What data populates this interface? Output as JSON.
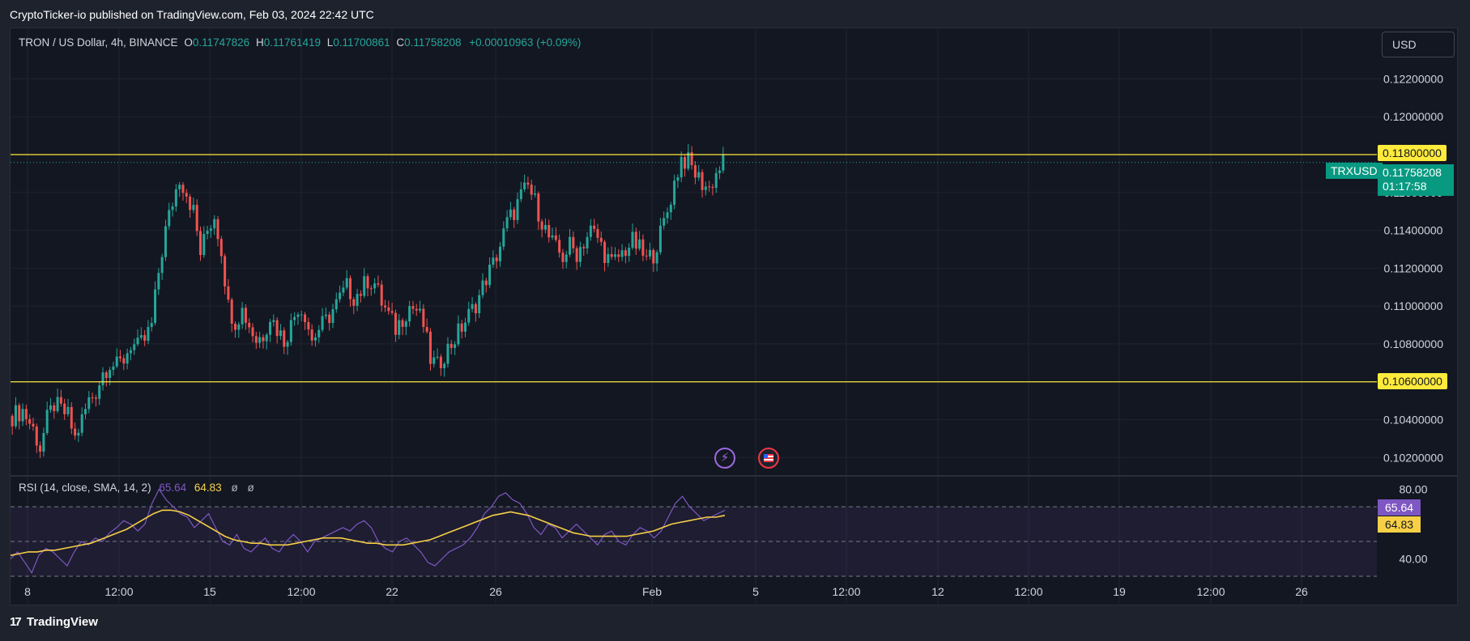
{
  "header": {
    "publish_line": "CryptoTicker-io published on TradingView.com, Feb 03, 2024 22:42 UTC"
  },
  "legend": {
    "symbol_line": "TRON / US Dollar, 4h, BINANCE",
    "o_label": "O",
    "o_value": "0.11747826",
    "h_label": "H",
    "h_value": "0.11761419",
    "l_label": "L",
    "l_value": "0.11700861",
    "c_label": "C",
    "c_value": "0.11758208",
    "change": "+0.00010963 (+0.09%)"
  },
  "currency_button": "USD",
  "price_labels": {
    "resistance": "0.11800000",
    "support": "0.10600000",
    "symbol_tag": "TRXUSD",
    "last_price": "0.11758208",
    "countdown": "01:17:58"
  },
  "rsi_legend": {
    "title": "RSI (14, close, SMA, 14, 2)",
    "rsi_value": "65.64",
    "sma_value": "64.83",
    "null1": "ø",
    "null2": "ø"
  },
  "footer": {
    "brand": "TradingView",
    "logo_glyph": "17"
  },
  "colors": {
    "background": "#131722",
    "up": "#26a69a",
    "down": "#ef5350",
    "level_line": "#ffeb3b",
    "rsi_line": "#7e57c2",
    "rsi_sma": "#f7d046",
    "grid": "#1f2430"
  },
  "icons": [
    "lightning-event-icon",
    "us-flag-event-icon"
  ],
  "chart_data": [
    {
      "type": "candlestick",
      "symbol": "TRXUSD",
      "interval": "4h",
      "exchange": "BINANCE",
      "y_ticks": [
        "0.12200000",
        "0.12000000",
        "0.11800000",
        "0.11600000",
        "0.11400000",
        "0.11200000",
        "0.11000000",
        "0.10800000",
        "0.10600000",
        "0.10400000",
        "0.10200000"
      ],
      "ylim": [
        0.1012,
        0.1236
      ],
      "x_ticks": [
        "8",
        "12:00",
        "15",
        "12:00",
        "22",
        "26",
        "Feb",
        "5",
        "12:00",
        "12",
        "12:00",
        "19",
        "12:00",
        "26"
      ],
      "grid": true,
      "horizontal_lines": [
        0.118,
        0.106
      ],
      "last_price": 0.11758208,
      "close_path": [
        [
          0,
          0.1042
        ],
        [
          3,
          0.1045
        ],
        [
          6,
          0.1035
        ],
        [
          8,
          0.1025
        ],
        [
          10,
          0.104
        ],
        [
          12,
          0.1048
        ],
        [
          14,
          0.1045
        ],
        [
          16,
          0.1042
        ],
        [
          18,
          0.103
        ],
        [
          20,
          0.104
        ],
        [
          22,
          0.105
        ],
        [
          24,
          0.1055
        ],
        [
          26,
          0.1065
        ],
        [
          28,
          0.107
        ],
        [
          30,
          0.1068
        ],
        [
          32,
          0.1072
        ],
        [
          34,
          0.108
        ],
        [
          36,
          0.1078
        ],
        [
          38,
          0.1082
        ],
        [
          40,
          0.109
        ],
        [
          42,
          0.1118
        ],
        [
          44,
          0.114
        ],
        [
          46,
          0.1155
        ],
        [
          48,
          0.1168
        ],
        [
          50,
          0.116
        ],
        [
          52,
          0.115
        ],
        [
          54,
          0.1128
        ],
        [
          56,
          0.114
        ],
        [
          58,
          0.1148
        ],
        [
          60,
          0.113
        ],
        [
          62,
          0.11
        ],
        [
          64,
          0.1092
        ],
        [
          66,
          0.1098
        ],
        [
          68,
          0.109
        ],
        [
          70,
          0.1082
        ],
        [
          72,
          0.1085
        ],
        [
          74,
          0.1095
        ],
        [
          76,
          0.1088
        ],
        [
          78,
          0.1082
        ],
        [
          80,
          0.109
        ],
        [
          82,
          0.11
        ],
        [
          84,
          0.1096
        ],
        [
          86,
          0.1082
        ],
        [
          88,
          0.1088
        ],
        [
          90,
          0.1092
        ],
        [
          92,
          0.1098
        ],
        [
          94,
          0.1104
        ],
        [
          96,
          0.111
        ],
        [
          98,
          0.1105
        ],
        [
          100,
          0.1108
        ],
        [
          102,
          0.1114
        ],
        [
          104,
          0.1112
        ],
        [
          106,
          0.1102
        ],
        [
          108,
          0.1095
        ],
        [
          110,
          0.1088
        ],
        [
          112,
          0.1094
        ],
        [
          114,
          0.11
        ],
        [
          116,
          0.1098
        ],
        [
          118,
          0.109
        ],
        [
          120,
          0.1072
        ],
        [
          122,
          0.1068
        ],
        [
          124,
          0.1075
        ],
        [
          126,
          0.108
        ],
        [
          128,
          0.1086
        ],
        [
          130,
          0.1092
        ],
        [
          132,
          0.1098
        ],
        [
          134,
          0.1105
        ],
        [
          136,
          0.1115
        ],
        [
          138,
          0.1122
        ],
        [
          140,
          0.1132
        ],
        [
          142,
          0.1144
        ],
        [
          144,
          0.115
        ],
        [
          146,
          0.1158
        ],
        [
          148,
          0.1163
        ],
        [
          150,
          0.1155
        ],
        [
          152,
          0.1145
        ],
        [
          154,
          0.1136
        ],
        [
          156,
          0.113
        ],
        [
          158,
          0.1126
        ],
        [
          160,
          0.1132
        ],
        [
          162,
          0.1128
        ],
        [
          164,
          0.1134
        ],
        [
          166,
          0.114
        ],
        [
          168,
          0.1136
        ],
        [
          170,
          0.1128
        ],
        [
          172,
          0.1122
        ],
        [
          174,
          0.1126
        ],
        [
          176,
          0.113
        ],
        [
          178,
          0.1134
        ],
        [
          180,
          0.113
        ],
        [
          182,
          0.1124
        ],
        [
          184,
          0.1128
        ],
        [
          186,
          0.1138
        ],
        [
          188,
          0.115
        ],
        [
          190,
          0.1165
        ],
        [
          192,
          0.1178
        ],
        [
          194,
          0.1176
        ],
        [
          196,
          0.117
        ],
        [
          198,
          0.1165
        ],
        [
          200,
          0.1162
        ],
        [
          202,
          0.117
        ],
        [
          204,
          0.1176
        ]
      ],
      "visible_bars": 205,
      "bar_axis": {
        "first": 0,
        "last": 204
      }
    },
    {
      "type": "line",
      "title": "RSI (14, close, SMA, 14, 2)",
      "y_ticks": [
        "80.00",
        "40.00"
      ],
      "ylim": [
        30,
        84
      ],
      "bands": [
        70,
        50,
        30
      ],
      "series": [
        {
          "name": "RSI",
          "color": "#7e57c2",
          "values": [
            40,
            44,
            38,
            32,
            42,
            46,
            44,
            40,
            36,
            44,
            50,
            48,
            52,
            50,
            55,
            58,
            62,
            60,
            56,
            60,
            72,
            80,
            74,
            70,
            66,
            64,
            58,
            62,
            66,
            58,
            50,
            48,
            54,
            46,
            44,
            48,
            52,
            46,
            44,
            50,
            54,
            50,
            44,
            50,
            52,
            54,
            56,
            58,
            56,
            60,
            62,
            58,
            50,
            46,
            44,
            50,
            52,
            48,
            44,
            38,
            36,
            40,
            44,
            46,
            48,
            52,
            58,
            66,
            70,
            76,
            78,
            74,
            72,
            66,
            58,
            54,
            60,
            58,
            52,
            56,
            60,
            56,
            52,
            48,
            54,
            56,
            50,
            48,
            54,
            58,
            56,
            52,
            56,
            64,
            72,
            76,
            70,
            66,
            62,
            64,
            66,
            68
          ]
        },
        {
          "name": "SMA",
          "color": "#f7d046",
          "values": [
            42,
            43,
            44,
            44,
            45,
            45,
            46,
            47,
            48,
            49,
            51,
            53,
            55,
            57,
            60,
            63,
            66,
            68,
            68,
            67,
            65,
            62,
            59,
            56,
            53,
            51,
            50,
            49,
            49,
            48,
            48,
            48,
            49,
            50,
            51,
            52,
            52,
            52,
            51,
            50,
            49,
            49,
            48,
            48,
            48,
            49,
            50,
            51,
            53,
            55,
            57,
            59,
            61,
            63,
            65,
            66,
            67,
            66,
            65,
            63,
            61,
            59,
            57,
            55,
            54,
            53,
            53,
            53,
            53,
            53,
            54,
            55,
            56,
            58,
            60,
            61,
            62,
            63,
            64,
            64,
            65
          ]
        }
      ],
      "last_rsi": 65.64,
      "last_sma": 64.83
    }
  ]
}
